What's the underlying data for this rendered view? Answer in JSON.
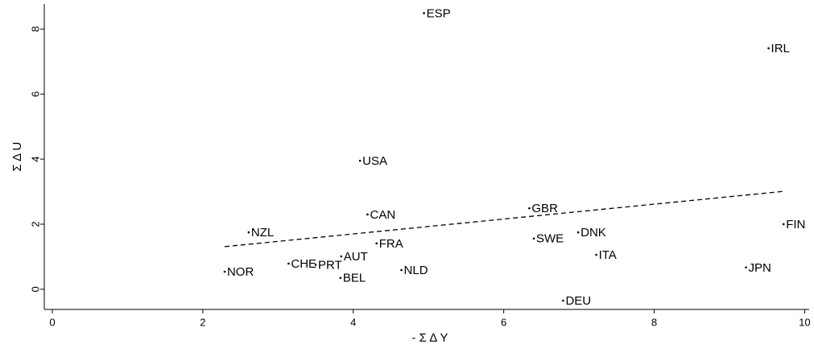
{
  "chart_data": {
    "type": "scatter",
    "x_label": "- Σ Δ Y",
    "y_label": "Σ Δ U",
    "labels": [
      "ESP",
      "IRL",
      "USA",
      "CAN",
      "GBR",
      "NZL",
      "FIN",
      "DNK",
      "SWE",
      "FRA",
      "ITA",
      "AUT",
      "CHE",
      "PRT",
      "NOR",
      "NLD",
      "BEL",
      "JPN",
      "DEU"
    ],
    "x": [
      4.94,
      9.52,
      4.09,
      4.19,
      6.34,
      2.61,
      9.72,
      6.99,
      6.4,
      4.31,
      7.23,
      3.84,
      3.14,
      3.5,
      2.29,
      4.64,
      3.83,
      9.22,
      6.79
    ],
    "y": [
      8.49,
      7.41,
      3.95,
      2.3,
      2.49,
      1.75,
      2.0,
      1.75,
      1.56,
      1.41,
      1.06,
      1.01,
      0.79,
      0.75,
      0.54,
      0.59,
      0.35,
      0.67,
      -0.35
    ],
    "color": "#000000",
    "trend": {
      "x": [
        2.29,
        9.72
      ],
      "y": [
        1.31,
        3.01
      ]
    },
    "xlim": [
      -0.107,
      10.06
    ],
    "ylim": [
      -0.62,
      8.77
    ],
    "xticks": [
      0,
      2,
      4,
      6,
      8,
      10
    ],
    "yticks": [
      0,
      2,
      4,
      6,
      8
    ]
  }
}
